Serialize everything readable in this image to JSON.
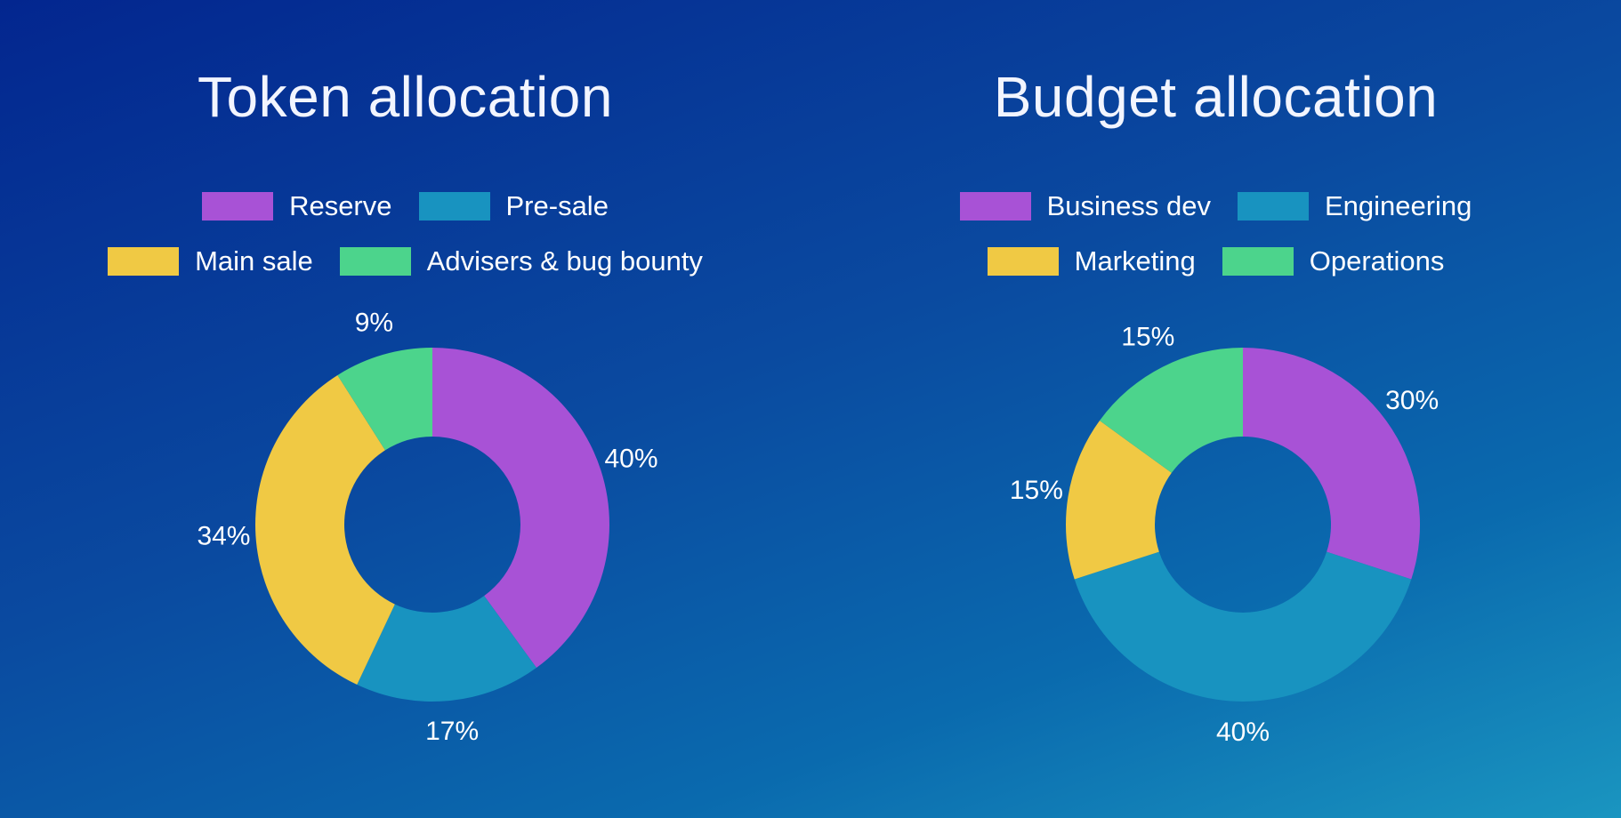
{
  "chart_data": [
    {
      "type": "pie",
      "title": "Token allocation",
      "categories": [
        "Reserve",
        "Pre-sale",
        "Main sale",
        "Advisers & bug bounty"
      ],
      "values": [
        40,
        17,
        34,
        9
      ],
      "value_labels": [
        "40%",
        "17%",
        "34%",
        "9%"
      ],
      "colors": [
        "#a852d6",
        "#1893c0",
        "#f0c944",
        "#4cd48c"
      ],
      "legend": "top",
      "donut": true
    },
    {
      "type": "pie",
      "title": "Budget allocation",
      "categories": [
        "Business dev",
        "Engineering",
        "Marketing",
        "Operations"
      ],
      "values": [
        30,
        40,
        15,
        15
      ],
      "value_labels": [
        "30%",
        "40%",
        "15%",
        "15%"
      ],
      "colors": [
        "#a852d6",
        "#1893c0",
        "#f0c944",
        "#4cd48c"
      ],
      "legend": "top",
      "donut": true
    }
  ]
}
